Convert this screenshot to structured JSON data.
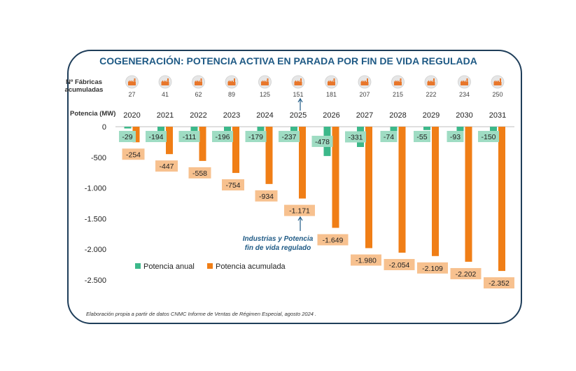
{
  "chart_data": {
    "type": "bar",
    "title": "COGENERACIÓN: POTENCIA ACTIVA EN PARADA POR FIN DE VIDA REGULADA",
    "fabricas_label": [
      "Nº Fábricas",
      "acumuladas"
    ],
    "ylabel": "Potencia (MW)",
    "categories": [
      "2020",
      "2021",
      "2022",
      "2023",
      "2024",
      "2025",
      "2026",
      "2027",
      "2028",
      "2029",
      "2030",
      "2031"
    ],
    "fabricas": [
      27,
      41,
      62,
      89,
      125,
      151,
      181,
      207,
      215,
      222,
      234,
      250
    ],
    "series": [
      {
        "name": "Potencia anual",
        "color": "#3cb88a",
        "values": [
          -29,
          -194,
          -111,
          -196,
          -179,
          -237,
          -478,
          -331,
          -74,
          -55,
          -93,
          -150
        ],
        "labels": [
          "-29",
          "-194",
          "-111",
          "-196",
          "-179",
          "-237",
          "-478",
          "-331",
          "-74",
          "-55",
          "-93",
          "-150"
        ]
      },
      {
        "name": "Potencia acumulada",
        "color": "#f07e16",
        "values": [
          -254,
          -447,
          -558,
          -754,
          -934,
          -1171,
          -1649,
          -1980,
          -2054,
          -2109,
          -2202,
          -2352
        ],
        "labels": [
          "-254",
          "-447",
          "-558",
          "-754",
          "-934",
          "-1.171",
          "-1.649",
          "-1.980",
          "-2.054",
          "-2.109",
          "-2.202",
          "-2.352"
        ]
      }
    ],
    "ylim": [
      -2500,
      0
    ],
    "yticks": [
      0,
      -500,
      -1000,
      -1500,
      -2000,
      -2500
    ],
    "ytick_labels": [
      "0",
      "-500",
      "-1.000",
      "-1.500",
      "-2.000",
      "-2.500"
    ],
    "annotation": [
      "Industrias y Potencia",
      "fin de vida regulado"
    ],
    "annotation_year": "2025",
    "label_box_colors": {
      "anual": "#9fdcc3",
      "acumulada": "#f7c18f"
    },
    "source": "Elaboración propia a partir de datos CNMC Informe de Ventas de Régimen Especial, agosto 2024 ."
  }
}
